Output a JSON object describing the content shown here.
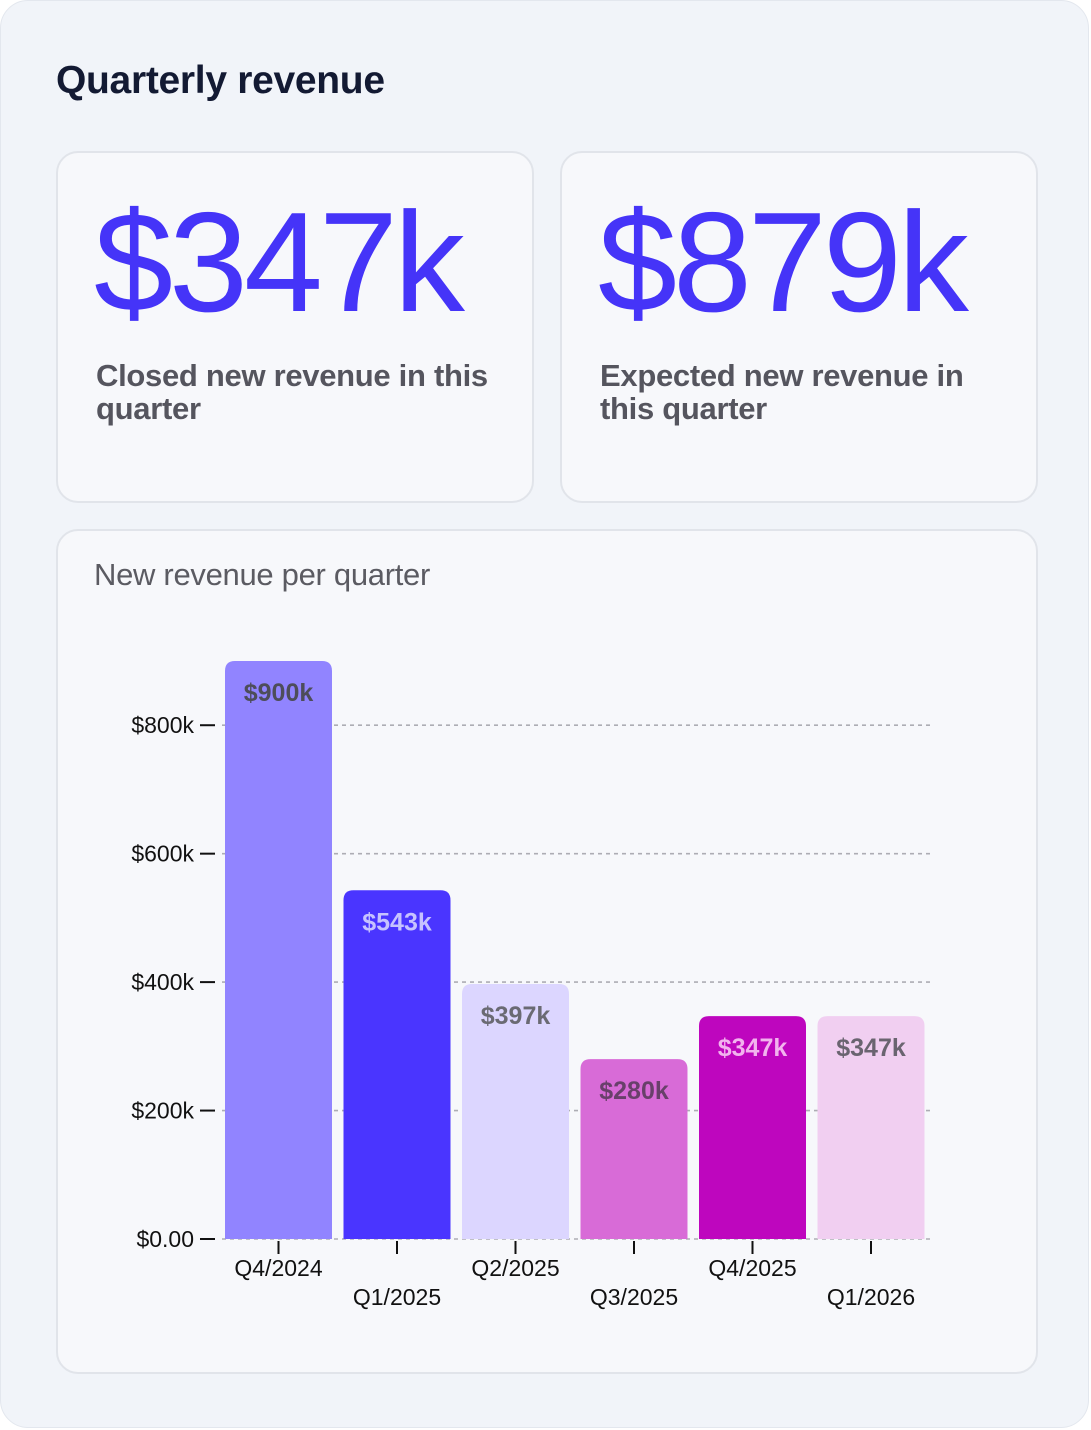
{
  "header": {
    "title": "Quarterly revenue"
  },
  "kpis": {
    "closed": {
      "value": "$347k",
      "label": "Closed new revenue in this quarter"
    },
    "expected": {
      "value": "$879k",
      "label": "Expected new revenue in this quarter"
    }
  },
  "colors": {
    "accent": "#4534f8",
    "bar_colors": [
      "#9184ff",
      "#4a35ff",
      "#dcd6ff",
      "#d86bd7",
      "#be06be",
      "#f1cff1"
    ],
    "label_colors": [
      "#4d4d5a",
      "#c6c2ff",
      "#6a6a73",
      "#68406a",
      "#f2b3ee",
      "#6a6470"
    ]
  },
  "chart_data": {
    "type": "bar",
    "title": "New revenue per quarter",
    "categories": [
      "Q4/2024",
      "Q1/2025",
      "Q2/2025",
      "Q3/2025",
      "Q4/2025",
      "Q1/2026"
    ],
    "values": [
      900,
      543,
      397,
      280,
      347,
      347
    ],
    "value_unit": "$k",
    "data_labels": [
      "$900k",
      "$543k",
      "$397k",
      "$280k",
      "$347k",
      "$347k"
    ],
    "y_ticks": [
      0,
      200,
      400,
      600,
      800
    ],
    "y_tick_labels": [
      "$0.00",
      "$200k",
      "$400k",
      "$600k",
      "$800k"
    ],
    "ylim": [
      0,
      900
    ],
    "grid": true,
    "xlabel": "",
    "ylabel": ""
  }
}
